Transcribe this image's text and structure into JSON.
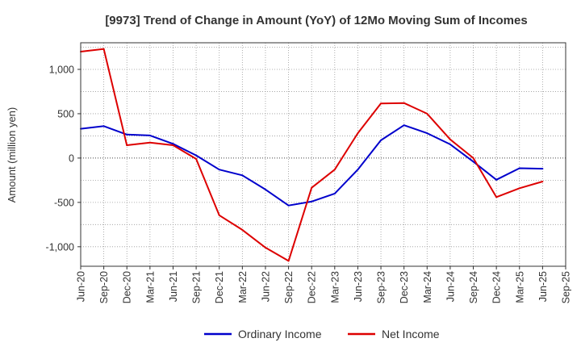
{
  "chart_data": {
    "type": "line",
    "title": "[9973]  Trend of Change in Amount (YoY) of 12Mo Moving Sum of Incomes",
    "xlabel": "",
    "ylabel": "Amount (million yen)",
    "ylim": [
      -1220,
      1300
    ],
    "yticks": [
      1000,
      500,
      0,
      -500,
      -1000
    ],
    "ytick_labels": [
      "1,000",
      "500",
      "0",
      "-500",
      "-1,000"
    ],
    "grid": true,
    "categories": [
      "Jun-20",
      "Sep-20",
      "Dec-20",
      "Mar-21",
      "Jun-21",
      "Sep-21",
      "Dec-21",
      "Mar-22",
      "Jun-22",
      "Sep-22",
      "Dec-22",
      "Mar-23",
      "Jun-23",
      "Sep-23",
      "Dec-23",
      "Mar-24",
      "Jun-24",
      "Sep-24",
      "Dec-24",
      "Mar-25",
      "Jun-25",
      "Sep-25"
    ],
    "series": [
      {
        "name": "Ordinary Income",
        "color": "#0000cc",
        "values": [
          330,
          360,
          265,
          255,
          160,
          30,
          -130,
          -195,
          -355,
          -535,
          -490,
          -400,
          -130,
          200,
          370,
          280,
          155,
          -40,
          -245,
          -115,
          -120,
          null
        ]
      },
      {
        "name": "Net Income",
        "color": "#dd0000",
        "values": [
          1200,
          1230,
          145,
          175,
          145,
          -10,
          -645,
          -810,
          -1010,
          -1160,
          -335,
          -130,
          280,
          615,
          620,
          500,
          210,
          0,
          -440,
          -340,
          -265,
          null
        ]
      }
    ],
    "legend_position": "bottom-center"
  }
}
